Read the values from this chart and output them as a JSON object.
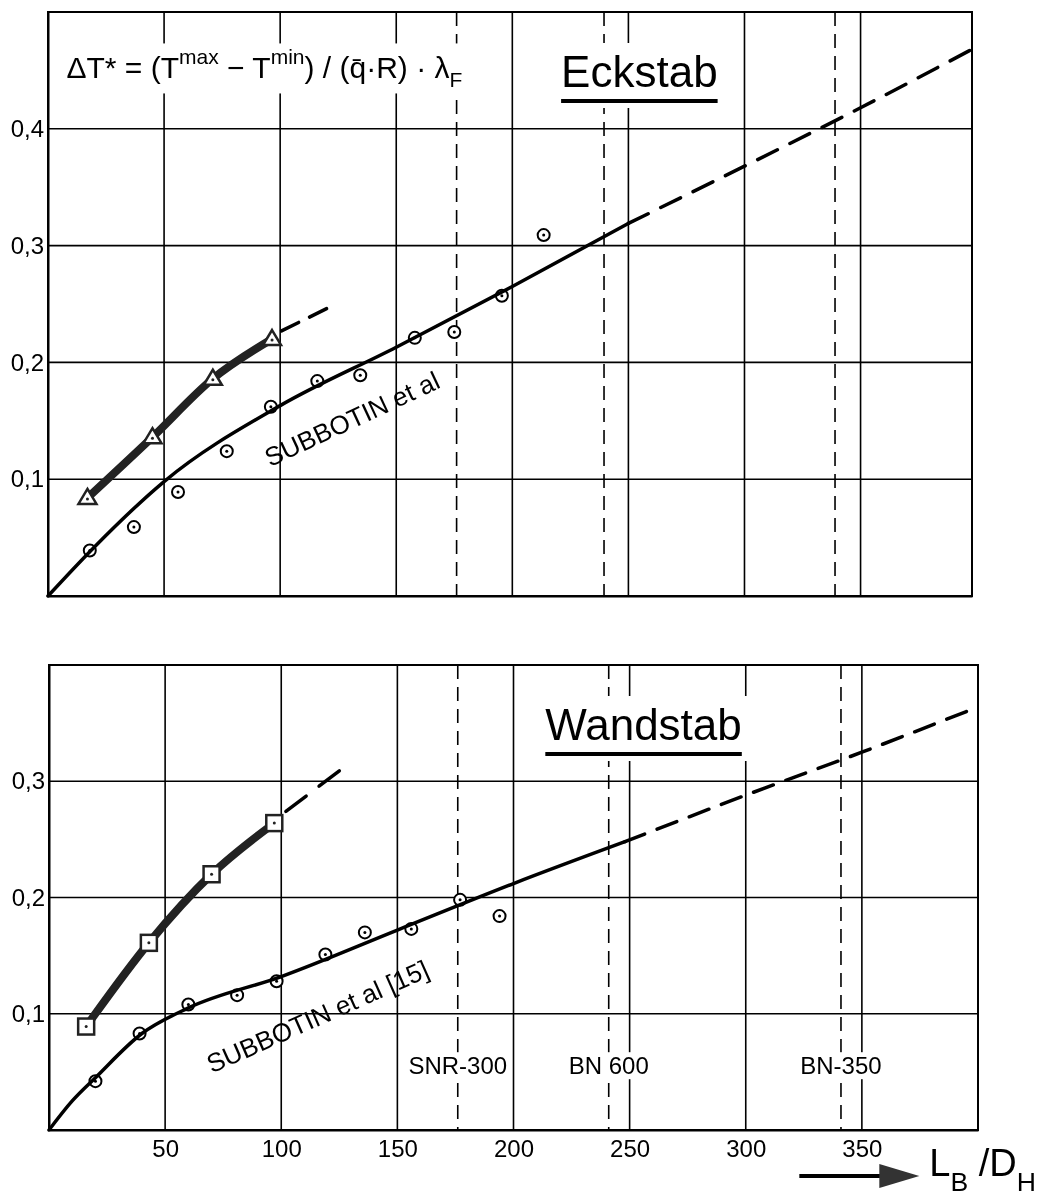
{
  "chart_data": [
    {
      "type": "scatter",
      "title": "Eckstab",
      "xlim": [
        0,
        398
      ],
      "ylim": [
        0,
        0.5
      ],
      "xticks": [
        50,
        100,
        150,
        200,
        250,
        300,
        350
      ],
      "yticks": [
        {
          "value": 0.1,
          "label": "0,1"
        },
        {
          "value": 0.2,
          "label": "0,2"
        },
        {
          "value": 0.3,
          "label": "0,3"
        },
        {
          "value": 0.4,
          "label": "0,4"
        }
      ],
      "grid": true,
      "tick_labels": "y",
      "series": [
        {
          "type": "scatter",
          "marker": "circle",
          "color": "#000000",
          "x": [
            18,
            37,
            56,
            77,
            96,
            116,
            134.5,
            158,
            175,
            195.5,
            213.5
          ],
          "values": [
            0.039,
            0.059,
            0.089,
            0.124,
            0.162,
            0.184,
            0.189,
            0.221,
            0.226,
            0.257,
            0.309
          ]
        },
        {
          "type": "line",
          "marker": "none",
          "line_style": "solid",
          "color": "#000000",
          "x": [
            0,
            20,
            50,
            100,
            150,
            200,
            250
          ],
          "values": [
            0,
            0.042,
            0.098,
            0.163,
            0.213,
            0.265,
            0.319
          ]
        },
        {
          "type": "line",
          "marker": "none",
          "line_style": "dashed",
          "color": "#000000",
          "x": [
            250,
            300,
            350,
            397
          ],
          "values": [
            0.319,
            0.368,
            0.418,
            0.467
          ]
        },
        {
          "type": "line",
          "marker": "triangle",
          "line_style": "solid",
          "color": "#222222",
          "x": [
            17,
            45,
            71,
            96.5
          ],
          "values": [
            0.084,
            0.136,
            0.186,
            0.22
          ]
        },
        {
          "type": "line",
          "marker": "none",
          "line_style": "dashed",
          "color": "#000000",
          "x": [
            100.6,
            120
          ],
          "values": [
            0.227,
            0.246
          ]
        }
      ],
      "ref_lines": [
        {
          "axis": "x",
          "value": 176,
          "line_style": "dashed"
        },
        {
          "axis": "x",
          "value": 239.5,
          "line_style": "dashed"
        },
        {
          "axis": "x",
          "value": 339,
          "line_style": "dashed"
        }
      ],
      "annotations": [
        "ΔT* = (T$^{max}$ − T$^{min}$) / (q̄·R) · λ$_{F}$",
        "SUBBOTIN et al"
      ]
    },
    {
      "type": "scatter",
      "title": "Wandstab",
      "xlabel": "L$_{B}$ /D$_{H}$",
      "xlim": [
        0,
        400
      ],
      "ylim": [
        0,
        0.4
      ],
      "xticks": [
        50,
        100,
        150,
        200,
        250,
        300,
        350
      ],
      "yticks": [
        {
          "value": 0.1,
          "label": "0,1"
        },
        {
          "value": 0.2,
          "label": "0,2"
        },
        {
          "value": 0.3,
          "label": "0,3"
        }
      ],
      "grid": true,
      "series": [
        {
          "type": "scatter",
          "marker": "circle",
          "color": "#000000",
          "x": [
            20,
            39,
            60,
            81,
            98,
            119,
            136,
            156,
            177,
            194
          ],
          "values": [
            0.042,
            0.083,
            0.108,
            0.116,
            0.128,
            0.151,
            0.17,
            0.173,
            0.198,
            0.184
          ]
        },
        {
          "type": "line",
          "marker": "none",
          "line_style": "solid",
          "color": "#000000",
          "x": [
            0,
            10,
            20,
            40,
            60,
            100,
            150,
            200,
            248
          ],
          "values": [
            0,
            0.025,
            0.045,
            0.083,
            0.105,
            0.132,
            0.172,
            0.212,
            0.248
          ]
        },
        {
          "type": "line",
          "marker": "none",
          "line_style": "dashed",
          "color": "#000000",
          "x": [
            248,
            300,
            350,
            395
          ],
          "values": [
            0.248,
            0.288,
            0.325,
            0.36
          ]
        },
        {
          "type": "line",
          "marker": "square",
          "line_style": "solid",
          "color": "#222222",
          "x": [
            16,
            43,
            70,
            97
          ],
          "values": [
            0.089,
            0.161,
            0.22,
            0.264
          ]
        },
        {
          "type": "line",
          "marker": "none",
          "line_style": "dashed",
          "color": "#000000",
          "x": [
            102,
            125
          ],
          "values": [
            0.274,
            0.309
          ]
        }
      ],
      "ref_lines": [
        {
          "axis": "x",
          "value": 176,
          "label": "SNR-300",
          "line_style": "dashed"
        },
        {
          "axis": "x",
          "value": 241,
          "label": "BN 600",
          "line_style": "dashed"
        },
        {
          "axis": "x",
          "value": 341,
          "label": "BN-350",
          "line_style": "dashed"
        }
      ],
      "annotations": [
        "SUBBOTIN et al [15]"
      ]
    }
  ]
}
